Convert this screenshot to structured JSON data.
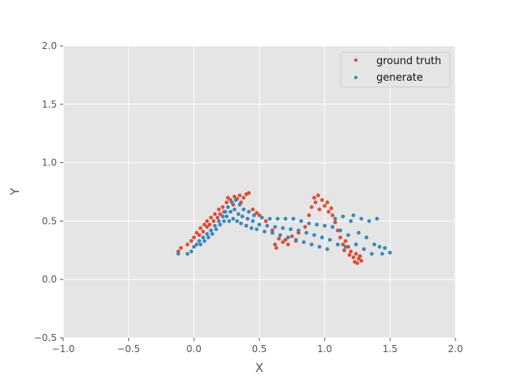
{
  "chart_data": {
    "type": "scatter",
    "title": "",
    "xlabel": "X",
    "ylabel": "Y",
    "xlim": [
      -1.0,
      2.0
    ],
    "ylim": [
      -0.5,
      2.0
    ],
    "xticks": [
      -1.0,
      -0.5,
      0.0,
      0.5,
      1.0,
      1.5,
      2.0
    ],
    "yticks": [
      -0.5,
      0.0,
      0.5,
      1.0,
      1.5,
      2.0
    ],
    "xtick_labels": [
      "−1.0",
      "−0.5",
      "0.0",
      "0.5",
      "1.0",
      "1.5",
      "2.0"
    ],
    "ytick_labels": [
      "−0.5",
      "0.0",
      "0.5",
      "1.0",
      "1.5",
      "2.0"
    ],
    "grid": true,
    "legend_position": "top-right",
    "series": [
      {
        "name": "ground truth",
        "color": "#E24A33",
        "points": [
          [
            -0.12,
            0.24
          ],
          [
            -0.1,
            0.27
          ],
          [
            -0.05,
            0.3
          ],
          [
            -0.02,
            0.33
          ],
          [
            0.0,
            0.36
          ],
          [
            0.02,
            0.4
          ],
          [
            0.04,
            0.38
          ],
          [
            0.05,
            0.44
          ],
          [
            0.07,
            0.41
          ],
          [
            0.08,
            0.47
          ],
          [
            0.1,
            0.45
          ],
          [
            0.1,
            0.5
          ],
          [
            0.12,
            0.47
          ],
          [
            0.13,
            0.53
          ],
          [
            0.15,
            0.5
          ],
          [
            0.16,
            0.56
          ],
          [
            0.18,
            0.53
          ],
          [
            0.19,
            0.6
          ],
          [
            0.2,
            0.56
          ],
          [
            0.22,
            0.62
          ],
          [
            0.23,
            0.58
          ],
          [
            0.25,
            0.66
          ],
          [
            0.26,
            0.7
          ],
          [
            0.28,
            0.68
          ],
          [
            0.3,
            0.64
          ],
          [
            0.31,
            0.71
          ],
          [
            0.33,
            0.69
          ],
          [
            0.35,
            0.72
          ],
          [
            0.36,
            0.66
          ],
          [
            0.38,
            0.7
          ],
          [
            0.4,
            0.73
          ],
          [
            0.42,
            0.74
          ],
          [
            0.45,
            0.6
          ],
          [
            0.48,
            0.57
          ],
          [
            0.5,
            0.55
          ],
          [
            0.55,
            0.5
          ],
          [
            0.6,
            0.42
          ],
          [
            0.62,
            0.3
          ],
          [
            0.63,
            0.27
          ],
          [
            0.65,
            0.35
          ],
          [
            0.68,
            0.32
          ],
          [
            0.7,
            0.34
          ],
          [
            0.72,
            0.3
          ],
          [
            0.75,
            0.37
          ],
          [
            0.78,
            0.33
          ],
          [
            0.8,
            0.4
          ],
          [
            0.85,
            0.45
          ],
          [
            0.88,
            0.55
          ],
          [
            0.9,
            0.62
          ],
          [
            0.92,
            0.7
          ],
          [
            0.93,
            0.66
          ],
          [
            0.95,
            0.72
          ],
          [
            0.96,
            0.6
          ],
          [
            0.98,
            0.68
          ],
          [
            1.0,
            0.63
          ],
          [
            1.02,
            0.66
          ],
          [
            1.03,
            0.58
          ],
          [
            1.05,
            0.61
          ],
          [
            1.06,
            0.55
          ],
          [
            1.08,
            0.49
          ],
          [
            1.1,
            0.42
          ],
          [
            1.12,
            0.36
          ],
          [
            1.14,
            0.3
          ],
          [
            1.15,
            0.25
          ],
          [
            1.16,
            0.33
          ],
          [
            1.18,
            0.28
          ],
          [
            1.19,
            0.21
          ],
          [
            1.2,
            0.24
          ],
          [
            1.22,
            0.19
          ],
          [
            1.23,
            0.15
          ],
          [
            1.24,
            0.22
          ],
          [
            1.25,
            0.14
          ],
          [
            1.26,
            0.18
          ],
          [
            1.27,
            0.2
          ],
          [
            1.28,
            0.16
          ]
        ]
      },
      {
        "name": "generate",
        "color": "#348ABD",
        "points": [
          [
            -0.12,
            0.22
          ],
          [
            -0.05,
            0.22
          ],
          [
            -0.02,
            0.24
          ],
          [
            0.0,
            0.28
          ],
          [
            0.02,
            0.3
          ],
          [
            0.04,
            0.33
          ],
          [
            0.05,
            0.3
          ],
          [
            0.07,
            0.36
          ],
          [
            0.08,
            0.33
          ],
          [
            0.1,
            0.39
          ],
          [
            0.11,
            0.36
          ],
          [
            0.13,
            0.42
          ],
          [
            0.14,
            0.39
          ],
          [
            0.16,
            0.46
          ],
          [
            0.17,
            0.43
          ],
          [
            0.19,
            0.5
          ],
          [
            0.2,
            0.47
          ],
          [
            0.22,
            0.54
          ],
          [
            0.23,
            0.5
          ],
          [
            0.24,
            0.58
          ],
          [
            0.25,
            0.54
          ],
          [
            0.26,
            0.62
          ],
          [
            0.27,
            0.5
          ],
          [
            0.28,
            0.58
          ],
          [
            0.29,
            0.66
          ],
          [
            0.3,
            0.52
          ],
          [
            0.31,
            0.6
          ],
          [
            0.32,
            0.68
          ],
          [
            0.33,
            0.5
          ],
          [
            0.34,
            0.56
          ],
          [
            0.35,
            0.64
          ],
          [
            0.36,
            0.48
          ],
          [
            0.37,
            0.54
          ],
          [
            0.38,
            0.6
          ],
          [
            0.4,
            0.46
          ],
          [
            0.41,
            0.52
          ],
          [
            0.42,
            0.58
          ],
          [
            0.44,
            0.44
          ],
          [
            0.45,
            0.5
          ],
          [
            0.46,
            0.55
          ],
          [
            0.48,
            0.43
          ],
          [
            0.5,
            0.47
          ],
          [
            0.52,
            0.53
          ],
          [
            0.54,
            0.41
          ],
          [
            0.56,
            0.46
          ],
          [
            0.58,
            0.52
          ],
          [
            0.6,
            0.4
          ],
          [
            0.62,
            0.45
          ],
          [
            0.64,
            0.52
          ],
          [
            0.66,
            0.38
          ],
          [
            0.68,
            0.44
          ],
          [
            0.7,
            0.52
          ],
          [
            0.72,
            0.36
          ],
          [
            0.74,
            0.43
          ],
          [
            0.76,
            0.52
          ],
          [
            0.78,
            0.34
          ],
          [
            0.8,
            0.42
          ],
          [
            0.82,
            0.5
          ],
          [
            0.84,
            0.32
          ],
          [
            0.86,
            0.4
          ],
          [
            0.88,
            0.48
          ],
          [
            0.9,
            0.3
          ],
          [
            0.92,
            0.38
          ],
          [
            0.94,
            0.47
          ],
          [
            0.96,
            0.28
          ],
          [
            0.98,
            0.36
          ],
          [
            1.0,
            0.46
          ],
          [
            1.02,
            0.26
          ],
          [
            1.04,
            0.34
          ],
          [
            1.06,
            0.45
          ],
          [
            1.08,
            0.52
          ],
          [
            1.1,
            0.3
          ],
          [
            1.12,
            0.42
          ],
          [
            1.14,
            0.54
          ],
          [
            1.16,
            0.28
          ],
          [
            1.18,
            0.38
          ],
          [
            1.2,
            0.5
          ],
          [
            1.22,
            0.55
          ],
          [
            1.24,
            0.3
          ],
          [
            1.26,
            0.4
          ],
          [
            1.28,
            0.52
          ],
          [
            1.3,
            0.26
          ],
          [
            1.32,
            0.36
          ],
          [
            1.34,
            0.5
          ],
          [
            1.36,
            0.22
          ],
          [
            1.38,
            0.3
          ],
          [
            1.4,
            0.52
          ],
          [
            1.42,
            0.28
          ],
          [
            1.44,
            0.22
          ],
          [
            1.46,
            0.27
          ],
          [
            1.5,
            0.23
          ]
        ]
      }
    ]
  }
}
